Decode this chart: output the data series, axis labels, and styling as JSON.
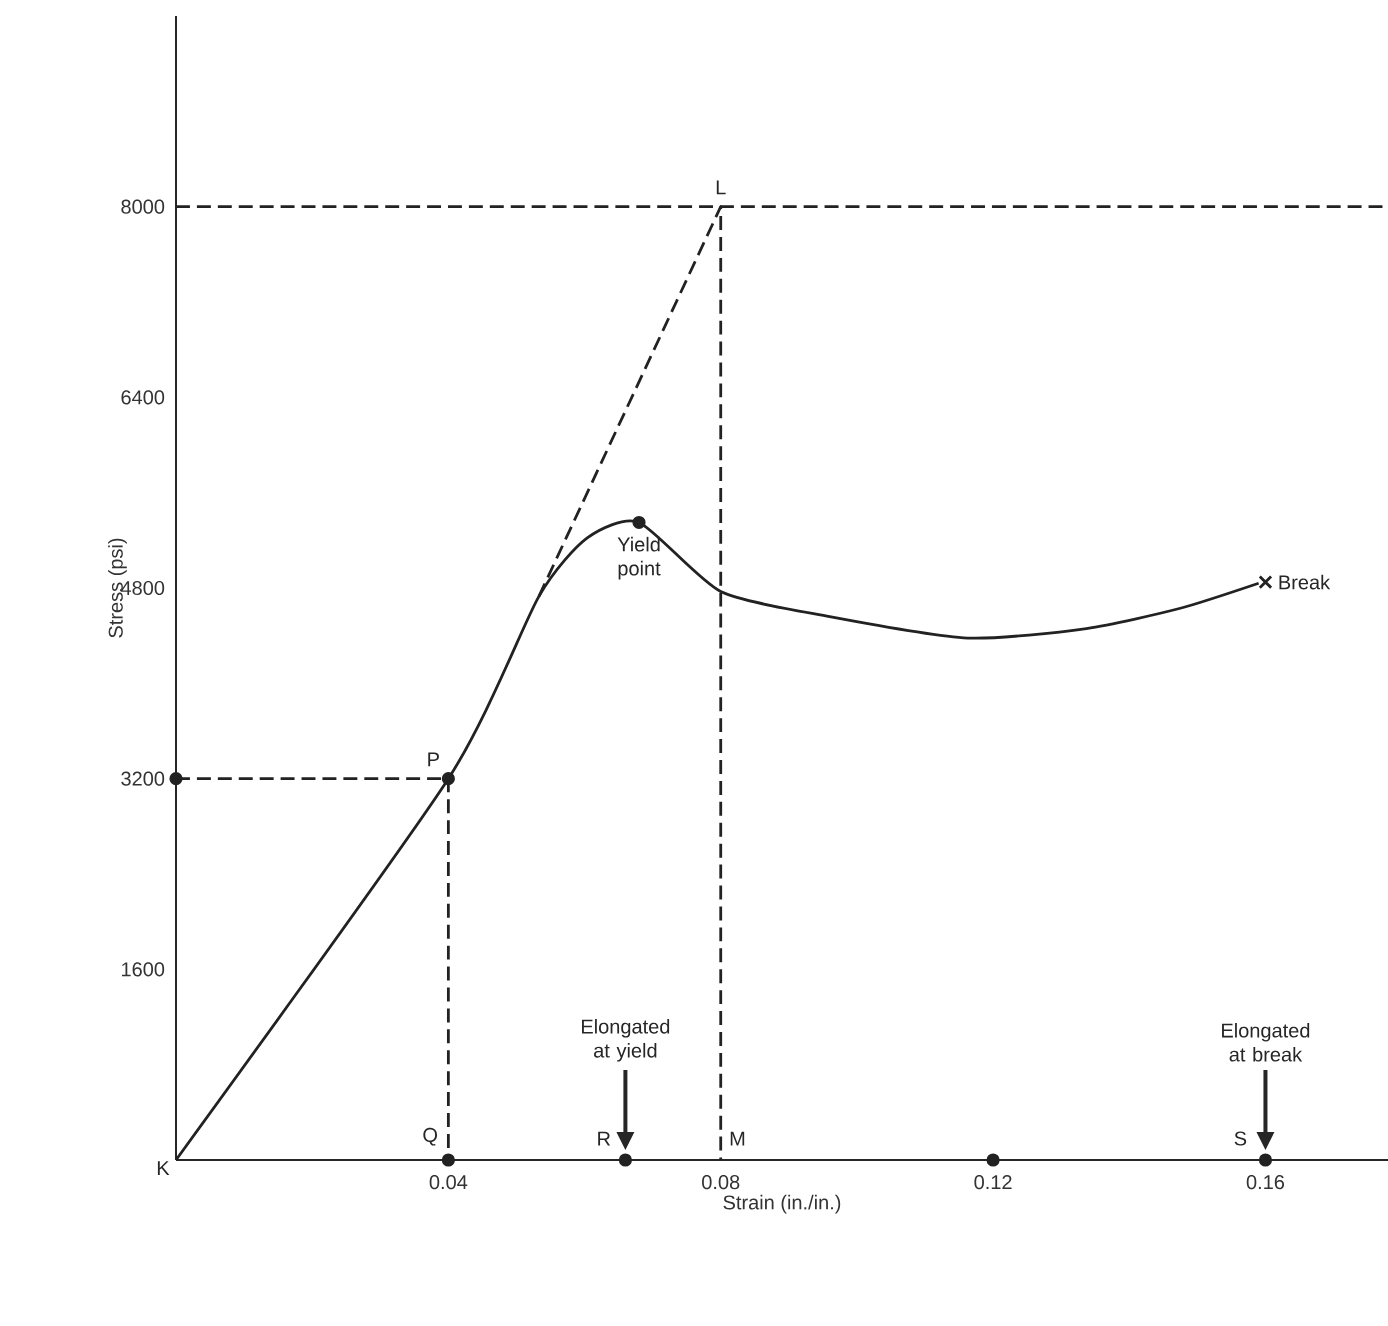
{
  "chart_data": {
    "type": "line",
    "xlabel": "Strain (in./in.)",
    "ylabel": "Stress (psi)",
    "xlim": [
      0,
      0.178
    ],
    "ylim": [
      0,
      9600
    ],
    "xticks": [
      0.04,
      0.08,
      0.12,
      0.16
    ],
    "yticks": [
      1600,
      3200,
      4800,
      6400,
      8000
    ],
    "grid": false,
    "legend": false,
    "series": [
      {
        "type": "line",
        "color": "#222222",
        "line_style": "solid",
        "marker": "none",
        "x": [
          0,
          0.04,
          0.0533,
          0.0604,
          0.068,
          0.08,
          0.096,
          0.1163,
          0.1337,
          0.1475,
          0.159
        ],
        "values": [
          0,
          3200,
          4730,
          5220,
          5350,
          4770,
          4560,
          4380,
          4460,
          4630,
          4840
        ]
      },
      {
        "type": "line",
        "color": "#222222",
        "line_style": "dashed",
        "marker": "none",
        "x": [
          0.0533,
          0.08,
          0.08
        ],
        "values": [
          4730,
          8000,
          0
        ]
      },
      {
        "type": "line",
        "color": "#222222",
        "line_style": "dashed",
        "marker": "none",
        "x": [
          0,
          0.04,
          0.04
        ],
        "values": [
          3200,
          3200,
          0
        ]
      },
      {
        "type": "scatter",
        "color": "#222222",
        "marker": "circle",
        "x": [
          0,
          0.04,
          0.04,
          0.066,
          0.12,
          0.16,
          0.068
        ],
        "values": [
          3200,
          3200,
          0,
          0,
          0,
          0,
          5350
        ]
      },
      {
        "type": "scatter",
        "color": "#222222",
        "marker": "cross",
        "x": [
          0.16
        ],
        "values": [
          4850
        ]
      }
    ],
    "ref_lines": [
      {
        "axis": "y",
        "value": 8000,
        "color": "#222222",
        "line_style": "dashed"
      }
    ],
    "annotations": [
      {
        "text": "K",
        "x": 0,
        "y": 0
      },
      {
        "text": "Q",
        "x": 0.04,
        "y": 0
      },
      {
        "text": "R",
        "x": 0.066,
        "y": 0
      },
      {
        "text": "M",
        "x": 0.08,
        "y": 0
      },
      {
        "text": "S",
        "x": 0.16,
        "y": 0
      },
      {
        "text": "P",
        "x": 0.04,
        "y": 3200
      },
      {
        "text": "L",
        "x": 0.08,
        "y": 8000
      },
      {
        "text": "Yield point",
        "x": 0.068,
        "y": 5350
      },
      {
        "text": "Break",
        "x": 0.16,
        "y": 4850
      },
      "Elongated at yield",
      "Elongated at break"
    ]
  }
}
